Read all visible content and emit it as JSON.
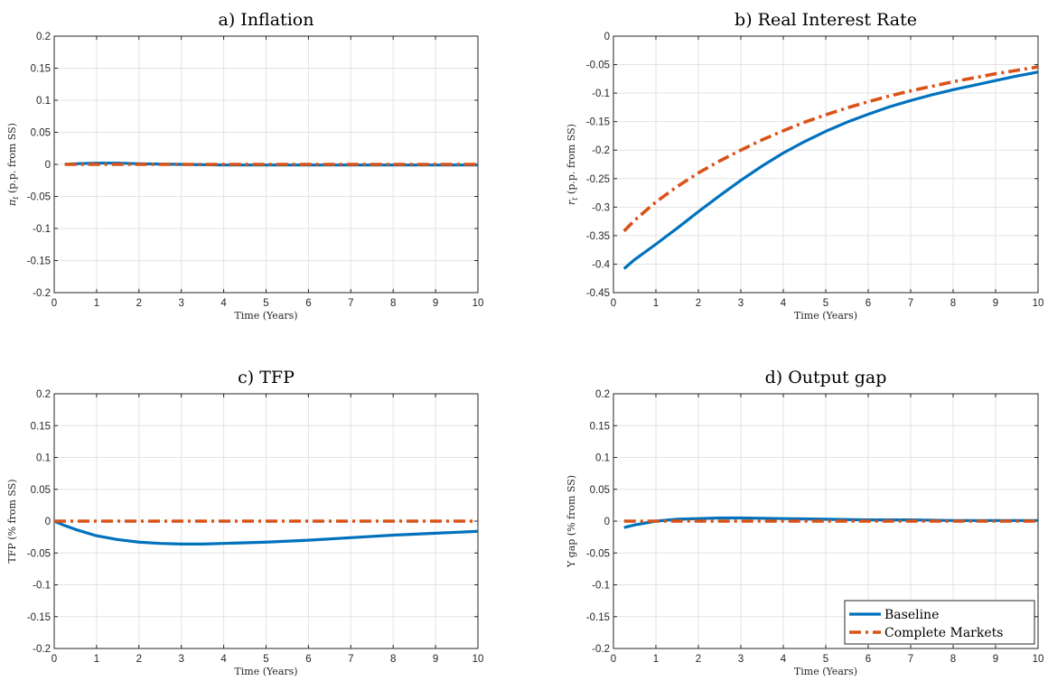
{
  "colors": {
    "baseline": "#0072BD",
    "complete_markets": "#D95319",
    "grid": "#e3e3e3",
    "axes": "#262626"
  },
  "legend": {
    "placement": "bottom-right",
    "panel": 3,
    "entries": [
      "Baseline",
      "Complete Markets"
    ]
  },
  "chart_data": [
    {
      "type": "line",
      "title": "a) Inflation",
      "xlabel": "Time (Years)",
      "ylabel_symbol": "π",
      "ylabel_subscript": "t",
      "ylabel_rest": " (p.p. from SS)",
      "xlim": [
        0,
        10
      ],
      "ylim": [
        -0.2,
        0.2
      ],
      "xticks": [
        0,
        1,
        2,
        3,
        4,
        5,
        6,
        7,
        8,
        9,
        10
      ],
      "xtick_labels": [
        "0",
        "1",
        "2",
        "3",
        "4",
        "5",
        "6",
        "7",
        "8",
        "9",
        "10"
      ],
      "yticks": [
        -0.2,
        -0.15,
        -0.1,
        -0.05,
        0,
        0.05,
        0.1,
        0.15,
        0.2
      ],
      "ytick_labels": [
        "-0.2",
        "-0.15",
        "-0.1",
        "-0.05",
        "0",
        "0.05",
        "0.1",
        "0.15",
        "0.2"
      ],
      "grid": true,
      "series": [
        {
          "name": "Baseline",
          "style": "solid",
          "x": [
            0.25,
            0.5,
            1,
            1.5,
            2,
            3,
            4,
            5,
            6,
            7,
            8,
            9,
            10
          ],
          "y": [
            0.0,
            0.001,
            0.002,
            0.002,
            0.001,
            0.0,
            -0.001,
            -0.001,
            -0.001,
            -0.001,
            -0.001,
            -0.001,
            -0.001
          ]
        },
        {
          "name": "Complete Markets",
          "style": "dashdot",
          "x": [
            0.25,
            10
          ],
          "y": [
            0.0,
            0.0
          ]
        }
      ]
    },
    {
      "type": "line",
      "title": "b) Real Interest Rate",
      "xlabel": "Time (Years)",
      "ylabel_symbol": "r",
      "ylabel_subscript": "t",
      "ylabel_rest": " (p.p. from SS)",
      "xlim": [
        0,
        10
      ],
      "ylim": [
        -0.45,
        0
      ],
      "xticks": [
        0,
        1,
        2,
        3,
        4,
        5,
        6,
        7,
        8,
        9,
        10
      ],
      "xtick_labels": [
        "0",
        "1",
        "2",
        "3",
        "4",
        "5",
        "6",
        "7",
        "8",
        "9",
        "10"
      ],
      "yticks": [
        -0.45,
        -0.4,
        -0.35,
        -0.3,
        -0.25,
        -0.2,
        -0.15,
        -0.1,
        -0.05,
        0
      ],
      "ytick_labels": [
        "-0.45",
        "-0.4",
        "-0.35",
        "-0.3",
        "-0.25",
        "-0.2",
        "-0.15",
        "-0.1",
        "-0.05",
        "0"
      ],
      "grid": true,
      "series": [
        {
          "name": "Baseline",
          "style": "solid",
          "x": [
            0.25,
            0.5,
            1,
            1.5,
            2,
            2.5,
            3,
            3.5,
            4,
            4.5,
            5,
            5.5,
            6,
            6.5,
            7,
            7.5,
            8,
            8.5,
            9,
            9.5,
            10
          ],
          "y": [
            -0.408,
            -0.392,
            -0.365,
            -0.337,
            -0.308,
            -0.28,
            -0.253,
            -0.228,
            -0.205,
            -0.185,
            -0.167,
            -0.151,
            -0.137,
            -0.124,
            -0.113,
            -0.103,
            -0.094,
            -0.086,
            -0.078,
            -0.07,
            -0.063
          ]
        },
        {
          "name": "Complete Markets",
          "style": "dashdot",
          "x": [
            0.25,
            0.5,
            1,
            1.5,
            2,
            2.5,
            3,
            3.5,
            4,
            4.5,
            5,
            5.5,
            6,
            6.5,
            7,
            7.5,
            8,
            8.5,
            9,
            9.5,
            10
          ],
          "y": [
            -0.342,
            -0.323,
            -0.291,
            -0.264,
            -0.24,
            -0.219,
            -0.2,
            -0.182,
            -0.166,
            -0.151,
            -0.138,
            -0.126,
            -0.115,
            -0.105,
            -0.096,
            -0.088,
            -0.08,
            -0.073,
            -0.066,
            -0.06,
            -0.054
          ]
        }
      ]
    },
    {
      "type": "line",
      "title": "c) TFP",
      "xlabel": "Time (Years)",
      "ylabel": "TFP (% from SS)",
      "xlim": [
        0,
        10
      ],
      "ylim": [
        -0.2,
        0.2
      ],
      "xticks": [
        0,
        1,
        2,
        3,
        4,
        5,
        6,
        7,
        8,
        9,
        10
      ],
      "xtick_labels": [
        "0",
        "1",
        "2",
        "3",
        "4",
        "5",
        "6",
        "7",
        "8",
        "9",
        "10"
      ],
      "yticks": [
        -0.2,
        -0.15,
        -0.1,
        -0.05,
        0,
        0.05,
        0.1,
        0.15,
        0.2
      ],
      "ytick_labels": [
        "-0.2",
        "-0.15",
        "-0.1",
        "-0.05",
        "0",
        "0.05",
        "0.1",
        "0.15",
        "0.2"
      ],
      "grid": true,
      "series": [
        {
          "name": "Baseline",
          "style": "solid",
          "x": [
            0,
            0.25,
            0.5,
            1,
            1.5,
            2,
            2.5,
            3,
            3.5,
            4,
            5,
            6,
            7,
            8,
            9,
            10
          ],
          "y": [
            0.0,
            -0.007,
            -0.013,
            -0.023,
            -0.029,
            -0.033,
            -0.035,
            -0.036,
            -0.036,
            -0.035,
            -0.033,
            -0.03,
            -0.026,
            -0.022,
            -0.019,
            -0.016
          ]
        },
        {
          "name": "Complete Markets",
          "style": "dashdot",
          "x": [
            0,
            10
          ],
          "y": [
            0.0,
            0.0
          ]
        }
      ]
    },
    {
      "type": "line",
      "title": "d) Output gap",
      "xlabel": "Time (Years)",
      "ylabel": "Y gap (% from SS)",
      "xlim": [
        0,
        10
      ],
      "ylim": [
        -0.2,
        0.2
      ],
      "xticks": [
        0,
        1,
        2,
        3,
        4,
        5,
        6,
        7,
        8,
        9,
        10
      ],
      "xtick_labels": [
        "0",
        "1",
        "2",
        "3",
        "4",
        "5",
        "6",
        "7",
        "8",
        "9",
        "10"
      ],
      "yticks": [
        -0.2,
        -0.15,
        -0.1,
        -0.05,
        0,
        0.05,
        0.1,
        0.15,
        0.2
      ],
      "ytick_labels": [
        "-0.2",
        "-0.15",
        "-0.1",
        "-0.05",
        "0",
        "0.05",
        "0.1",
        "0.15",
        "0.2"
      ],
      "grid": true,
      "series": [
        {
          "name": "Baseline",
          "style": "solid",
          "x": [
            0.25,
            0.5,
            0.75,
            1,
            1.5,
            2,
            2.5,
            3,
            4,
            5,
            6,
            7,
            8,
            9,
            10
          ],
          "y": [
            -0.01,
            -0.006,
            -0.003,
            0.0,
            0.003,
            0.004,
            0.005,
            0.005,
            0.004,
            0.003,
            0.002,
            0.002,
            0.001,
            0.001,
            0.001
          ]
        },
        {
          "name": "Complete Markets",
          "style": "dashdot",
          "x": [
            0.25,
            10
          ],
          "y": [
            0.0,
            0.0
          ]
        }
      ]
    }
  ]
}
